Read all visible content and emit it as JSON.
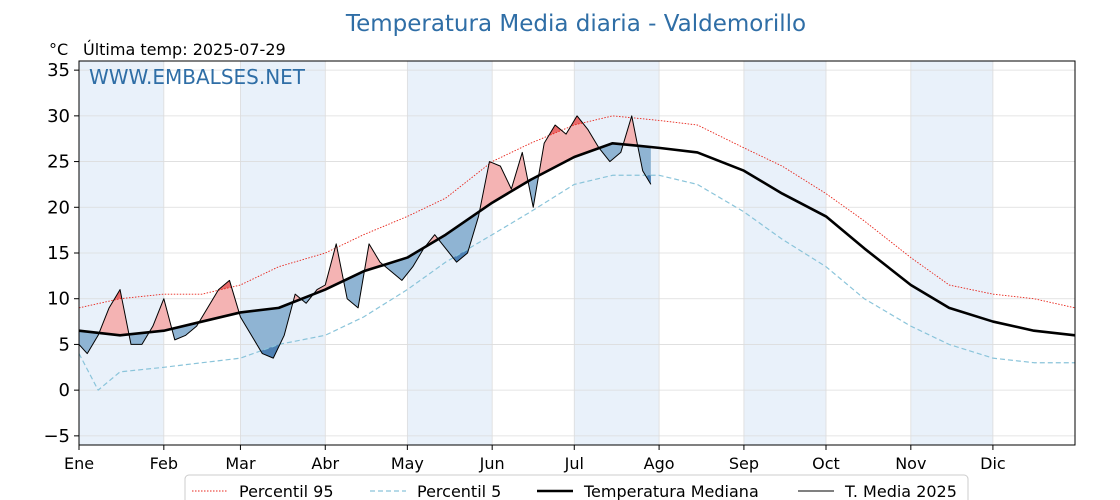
{
  "title": "Temperatura Media diaria - Valdemorillo",
  "unit_label": "°C",
  "last_temp_label": "Última temp: 2025-07-29",
  "watermark": "WWW.EMBALSES.NET",
  "colors": {
    "title": "#2f6ea6",
    "p95": "#e8251b",
    "p5": "#8ac4da",
    "median": "#000000",
    "current": "#000000",
    "above_fill": "#f4b3b3",
    "above_strong": "#e86a6a",
    "below_fill": "#8fb4d3",
    "below_strong": "#4d80b3",
    "band": "#e9f1fa"
  },
  "chart_data": {
    "type": "line",
    "xlabel": "",
    "ylabel": "°C",
    "ylim": [
      -6,
      36
    ],
    "xlim": [
      1,
      365
    ],
    "grid": true,
    "y_ticks": [
      -5,
      0,
      5,
      10,
      15,
      20,
      25,
      30,
      35
    ],
    "month_labels": [
      "Ene",
      "Feb",
      "Mar",
      "Abr",
      "May",
      "Jun",
      "Jul",
      "Ago",
      "Sep",
      "Oct",
      "Nov",
      "Dic"
    ],
    "month_start_days": [
      1,
      32,
      60,
      91,
      121,
      152,
      182,
      213,
      244,
      274,
      305,
      335
    ],
    "legend_position": "bottom",
    "series": [
      {
        "name": "Percentil 95",
        "style": "dotted",
        "x": [
          1,
          16,
          32,
          46,
          60,
          74,
          91,
          105,
          121,
          135,
          152,
          166,
          182,
          196,
          213,
          227,
          244,
          258,
          274,
          288,
          305,
          319,
          335,
          350,
          365
        ],
        "y": [
          9,
          10,
          10.5,
          10.5,
          11.5,
          13.5,
          15,
          17,
          19,
          21,
          25,
          27,
          29,
          30,
          29.5,
          29,
          26.5,
          24.5,
          21.5,
          18.5,
          14.5,
          11.5,
          10.5,
          10,
          9
        ]
      },
      {
        "name": "Percentil 5",
        "style": "dashed",
        "x": [
          1,
          8,
          16,
          32,
          46,
          60,
          74,
          91,
          105,
          121,
          135,
          152,
          166,
          182,
          196,
          213,
          227,
          244,
          258,
          274,
          288,
          305,
          319,
          335,
          350,
          365
        ],
        "y": [
          4,
          0,
          2,
          2.5,
          3,
          3.5,
          5,
          6,
          8,
          11,
          14,
          17,
          19.5,
          22.5,
          23.5,
          23.5,
          22.5,
          19.5,
          16.5,
          13.5,
          10,
          7,
          5,
          3.5,
          3,
          3
        ]
      },
      {
        "name": "Temperatura Mediana",
        "style": "solid-thick",
        "x": [
          1,
          16,
          32,
          46,
          60,
          74,
          91,
          105,
          121,
          135,
          152,
          166,
          182,
          196,
          213,
          227,
          244,
          258,
          274,
          288,
          305,
          319,
          335,
          350,
          365
        ],
        "y": [
          6.5,
          6,
          6.5,
          7.5,
          8.5,
          9,
          11,
          13,
          14.5,
          17,
          20.5,
          23,
          25.5,
          27,
          26.5,
          26,
          24,
          21.5,
          19,
          15.5,
          11.5,
          9,
          7.5,
          6.5,
          6
        ]
      },
      {
        "name": "T. Media 2025",
        "style": "solid-thin",
        "x": [
          1,
          4,
          8,
          12,
          16,
          20,
          24,
          28,
          32,
          36,
          40,
          44,
          48,
          52,
          56,
          60,
          64,
          68,
          72,
          76,
          80,
          84,
          88,
          91,
          95,
          99,
          103,
          107,
          111,
          115,
          119,
          123,
          127,
          131,
          135,
          139,
          143,
          147,
          151,
          155,
          159,
          163,
          167,
          171,
          175,
          179,
          183,
          187,
          191,
          195,
          199,
          203,
          207,
          210
        ],
        "y": [
          5,
          4,
          6,
          9,
          11,
          5,
          5,
          7,
          10,
          5.5,
          6,
          7,
          9,
          11,
          12,
          8,
          6,
          4,
          3.5,
          6,
          10.5,
          9.5,
          11,
          11.5,
          16,
          10,
          9,
          16,
          14,
          13,
          12,
          13.5,
          15.5,
          17,
          15.5,
          14,
          15,
          19,
          25,
          24.5,
          22,
          26,
          20,
          27,
          29,
          28,
          30,
          28.5,
          26.5,
          25,
          26,
          30,
          24,
          22.5
        ]
      }
    ]
  }
}
